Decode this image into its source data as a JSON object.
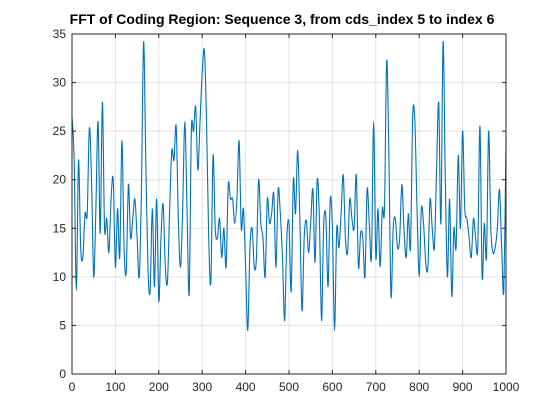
{
  "chart_data": {
    "type": "line",
    "title": "FFT of Coding Region: Sequence 3, from cds_index 5 to index 6",
    "xlabel": "",
    "ylabel": "",
    "xlim": [
      0,
      1000
    ],
    "ylim": [
      0,
      35
    ],
    "xticks": [
      0,
      100,
      200,
      300,
      400,
      500,
      600,
      700,
      800,
      900,
      1000
    ],
    "yticks": [
      0,
      5,
      10,
      15,
      20,
      25,
      30,
      35
    ],
    "grid": true,
    "series_color": "#0072BD",
    "series": [
      {
        "x": [
          0,
          5,
          10,
          15,
          20,
          25,
          30,
          35,
          40,
          45,
          50,
          55,
          60,
          65,
          70,
          75,
          80,
          85,
          90,
          95,
          100,
          105,
          110,
          115,
          120,
          125,
          130,
          135,
          140,
          145,
          150,
          155,
          160,
          165,
          170,
          175,
          180,
          185,
          190,
          195,
          200,
          205,
          210,
          215,
          220,
          225,
          230,
          235,
          240,
          245,
          250,
          255,
          260,
          265,
          270,
          275,
          280,
          285,
          290,
          295,
          300,
          305,
          310,
          315,
          320,
          325,
          330,
          335,
          340,
          345,
          350,
          355,
          360,
          365,
          370,
          375,
          380,
          385,
          390,
          395,
          400,
          405,
          410,
          415,
          420,
          425,
          430,
          435,
          440,
          445,
          450,
          455,
          460,
          465,
          470,
          475,
          480,
          485,
          490,
          495,
          500,
          505,
          510,
          515,
          520,
          525,
          530,
          535,
          540,
          545,
          550,
          555,
          560,
          565,
          570,
          575,
          580,
          585,
          590,
          595,
          600,
          605,
          610,
          615,
          620,
          625,
          630,
          635,
          640,
          645,
          650,
          655,
          660,
          665,
          670,
          675,
          680,
          685,
          690,
          695,
          700,
          705,
          710,
          715,
          720,
          725,
          730,
          735,
          740,
          745,
          750,
          755,
          760,
          765,
          770,
          775,
          780,
          785,
          790,
          795,
          800,
          805,
          810,
          815,
          820,
          825,
          830,
          835,
          840,
          845,
          850,
          855,
          860,
          865,
          870,
          875,
          880,
          885,
          890,
          895,
          900,
          905,
          910,
          915,
          920,
          925,
          930,
          935,
          940,
          945,
          950,
          955,
          960,
          965,
          970,
          975,
          980,
          985,
          990,
          995,
          1000
        ],
        "y": [
          26.5,
          22,
          8.6,
          22,
          13,
          12,
          16.5,
          16.5,
          25.3,
          20,
          10,
          17,
          26,
          14.5,
          28,
          15,
          16,
          12.5,
          18,
          20,
          11,
          17,
          12,
          24,
          13,
          10.5,
          19.5,
          14,
          16,
          18,
          14,
          10,
          19,
          34.2,
          22,
          11,
          8.5,
          17,
          9,
          18,
          7.5,
          14,
          17.5,
          11,
          9.5,
          17,
          23,
          22,
          25.5,
          16,
          11,
          17,
          26,
          17,
          8.2,
          25,
          25,
          27.5,
          21,
          26,
          31,
          33.3,
          26,
          14,
          9.5,
          22.5,
          15,
          14,
          16,
          12,
          15,
          11,
          19.5,
          18,
          18,
          15.5,
          18,
          24,
          15,
          17,
          11,
          4.5,
          13,
          15,
          11,
          12,
          20,
          15.5,
          14,
          10,
          18,
          15.5,
          16.5,
          18.5,
          11,
          19,
          16.5,
          12,
          5.5,
          14,
          15.5,
          8.5,
          20,
          16.5,
          23,
          16,
          6.5,
          14,
          15.8,
          12.5,
          15.5,
          19,
          11.5,
          20,
          16,
          5.5,
          15.5,
          16,
          9,
          18,
          15,
          4.5,
          15,
          13,
          16.5,
          20.5,
          14,
          12.5,
          18,
          16,
          15,
          20.5,
          11,
          14.5,
          14,
          10,
          19,
          15.5,
          12,
          26,
          12,
          17,
          11,
          17,
          17,
          32.2,
          23,
          8,
          15,
          16,
          13,
          14,
          19.5,
          14.8,
          12,
          16.5,
          13,
          26.5,
          26,
          17,
          10,
          17,
          15.5,
          11.5,
          11,
          18,
          15,
          13,
          21,
          27.9,
          15.5,
          34.2,
          20.5,
          10,
          18,
          8,
          15,
          13,
          22.5,
          15,
          25,
          17,
          16,
          14,
          12,
          16,
          14,
          13,
          25.5,
          10,
          15.5,
          12,
          25,
          15,
          12.5,
          13,
          15,
          19,
          13,
          8.6,
          24
        ]
      }
    ]
  }
}
